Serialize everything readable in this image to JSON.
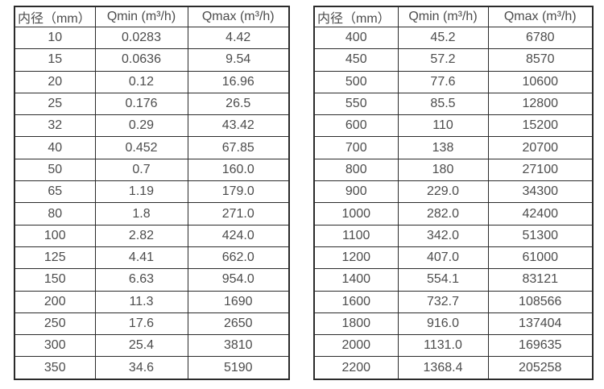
{
  "page": {
    "background": "#ffffff",
    "border_color": "#2b2b2b",
    "text_color": "#4c4c4c"
  },
  "tables": [
    {
      "name": "flow-spec-table-small-diameters",
      "headers": [
        "内径（mm）",
        "Qmin (m³/h)",
        "Qmax (m³/h)"
      ],
      "rows": [
        [
          "10",
          "0.0283",
          "4.42"
        ],
        [
          "15",
          "0.0636",
          "9.54"
        ],
        [
          "20",
          "0.12",
          "16.96"
        ],
        [
          "25",
          "0.176",
          "26.5"
        ],
        [
          "32",
          "0.29",
          "43.42"
        ],
        [
          "40",
          "0.452",
          "67.85"
        ],
        [
          "50",
          "0.7",
          "160.0"
        ],
        [
          "65",
          "1.19",
          "179.0"
        ],
        [
          "80",
          "1.8",
          "271.0"
        ],
        [
          "100",
          "2.82",
          "424.0"
        ],
        [
          "125",
          "4.41",
          "662.0"
        ],
        [
          "150",
          "6.63",
          "954.0"
        ],
        [
          "200",
          "11.3",
          "1690"
        ],
        [
          "250",
          "17.6",
          "2650"
        ],
        [
          "300",
          "25.4",
          "3810"
        ],
        [
          "350",
          "34.6",
          "5190"
        ]
      ]
    },
    {
      "name": "flow-spec-table-large-diameters",
      "headers": [
        "内径（mm）",
        "Qmin (m³/h)",
        "Qmax (m³/h)"
      ],
      "rows": [
        [
          "400",
          "45.2",
          "6780"
        ],
        [
          "450",
          "57.2",
          "8570"
        ],
        [
          "500",
          "77.6",
          "10600"
        ],
        [
          "550",
          "85.5",
          "12800"
        ],
        [
          "600",
          "110",
          "15200"
        ],
        [
          "700",
          "138",
          "20700"
        ],
        [
          "800",
          "180",
          "27100"
        ],
        [
          "900",
          "229.0",
          "34300"
        ],
        [
          "1000",
          "282.0",
          "42400"
        ],
        [
          "1100",
          "342.0",
          "51300"
        ],
        [
          "1200",
          "407.0",
          "61000"
        ],
        [
          "1400",
          "554.1",
          "83121"
        ],
        [
          "1600",
          "732.7",
          "108566"
        ],
        [
          "1800",
          "916.0",
          "137404"
        ],
        [
          "2000",
          "1131.0",
          "169635"
        ],
        [
          "2200",
          "1368.4",
          "205258"
        ]
      ]
    }
  ]
}
